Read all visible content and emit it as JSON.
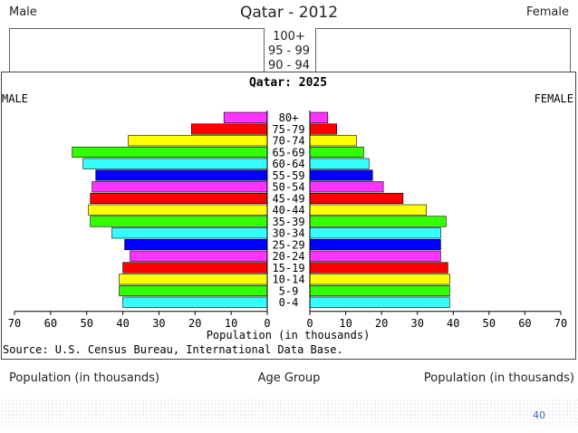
{
  "slide": {
    "title": "Qatar - 2012",
    "male_label": "Male",
    "female_label": "Female",
    "age_groups_visible": [
      "100+",
      "95 - 99",
      "90 - 94"
    ],
    "footer_left": "Population (in thousands)",
    "footer_middle": "Age Group",
    "footer_right": "Population (in thousands)",
    "page_number": "40"
  },
  "chart_data": {
    "type": "bar",
    "title": "Qatar: 2025",
    "left_label": "MALE",
    "right_label": "FEMALE",
    "xlabel": "Population (in thousands)",
    "source": "Source: U.S. Census Bureau, International Data Base.",
    "xlim": [
      0,
      70
    ],
    "ticks": [
      "70",
      "60",
      "50",
      "40",
      "30",
      "20",
      "10",
      "0"
    ],
    "ticks_right": [
      "0",
      "10",
      "20",
      "30",
      "40",
      "50",
      "60",
      "70"
    ],
    "categories": [
      "80+",
      "75-79",
      "70-74",
      "65-69",
      "60-64",
      "55-59",
      "50-54",
      "45-49",
      "40-44",
      "35-39",
      "30-34",
      "25-29",
      "20-24",
      "15-19",
      "10-14",
      "5-9",
      "0-4"
    ],
    "series": [
      {
        "name": "MALE",
        "values": [
          12,
          21,
          38.5,
          54,
          51,
          47.5,
          48.5,
          49,
          49.5,
          49,
          43,
          39.5,
          38,
          40,
          41,
          41,
          40
        ]
      },
      {
        "name": "FEMALE",
        "values": [
          5,
          7.5,
          13,
          15,
          16.5,
          17.5,
          20.5,
          26,
          32.5,
          38,
          36.5,
          36.5,
          36.5,
          38.5,
          39,
          39,
          39
        ]
      }
    ],
    "bar_colors": [
      "#ff33ff",
      "#ff0000",
      "#ffff00",
      "#33ff00",
      "#33ffff",
      "#0000ff",
      "#ff33ff",
      "#ff0000",
      "#ffff00",
      "#33ff00",
      "#33ffff",
      "#0000ff",
      "#ff33ff",
      "#ff0000",
      "#ffff00",
      "#33ff00",
      "#33ffff"
    ]
  }
}
